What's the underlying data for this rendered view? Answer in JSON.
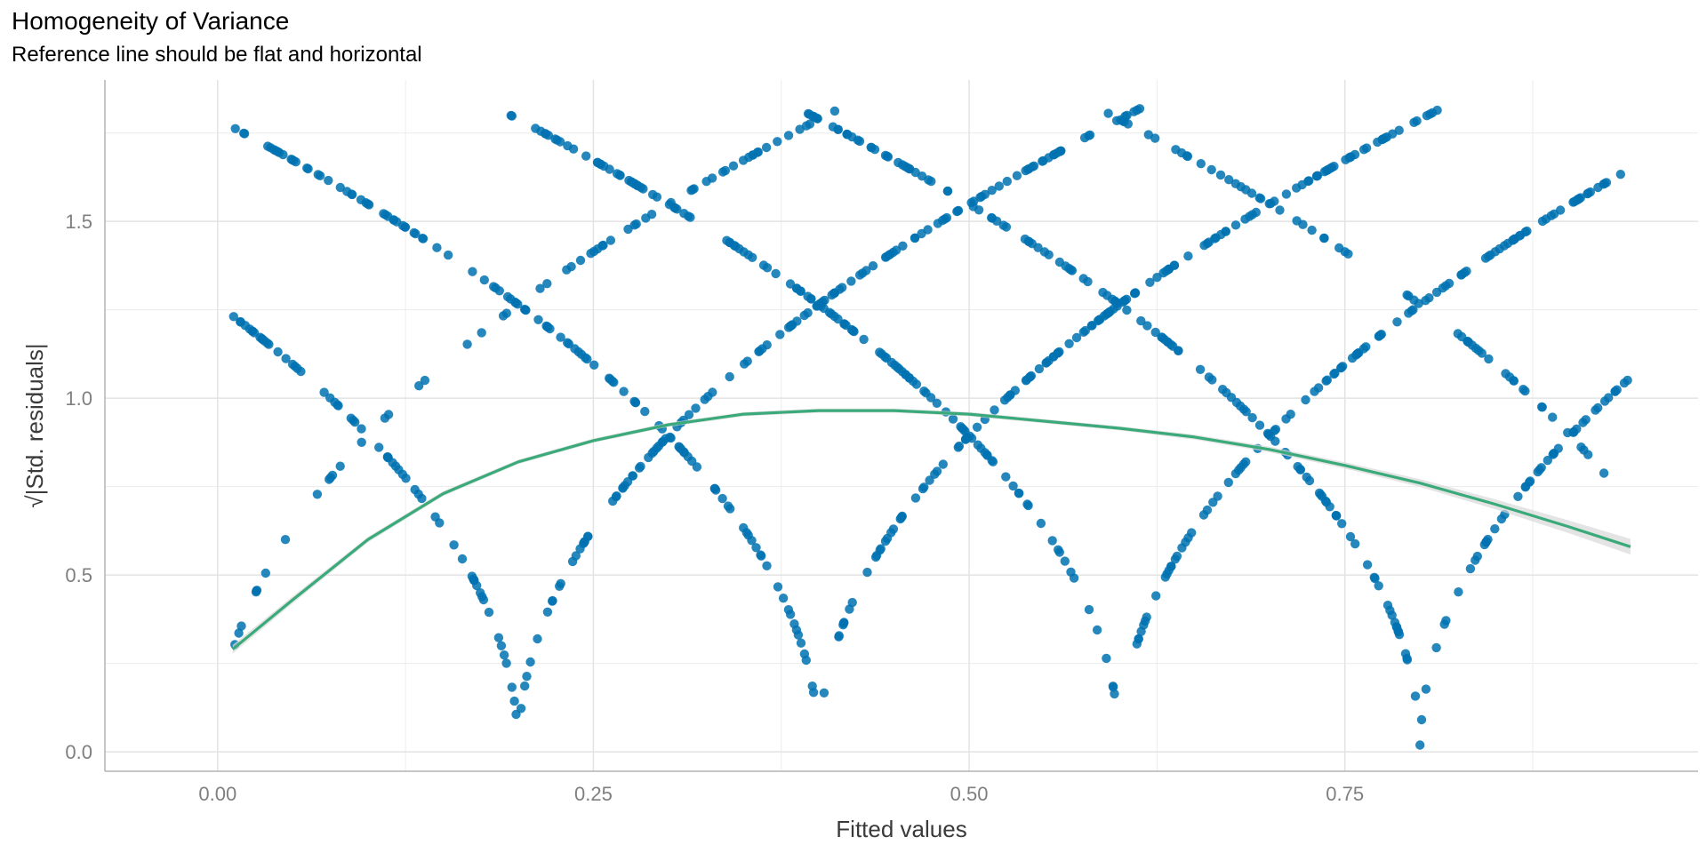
{
  "chart_data": {
    "type": "scatter",
    "title": "Homogeneity of Variance",
    "subtitle": "Reference line should be flat and horizontal",
    "xlabel": "Fitted values",
    "ylabel": "√|Std. residuals|",
    "xlim": [
      -0.075,
      0.985
    ],
    "ylim": [
      -0.055,
      1.9
    ],
    "x_ticks": [
      "0.00",
      "0.25",
      "0.50",
      "0.75"
    ],
    "x_tick_values": [
      0.0,
      0.25,
      0.5,
      0.75
    ],
    "y_ticks": [
      "0.0",
      "0.5",
      "1.0",
      "1.5"
    ],
    "y_tick_values": [
      0.0,
      0.5,
      1.0,
      1.5
    ],
    "grid": true,
    "point_color": "#0072b2",
    "smooth_color": "#3aaa7a",
    "band_color": "#d9d9d9",
    "point_families": [
      {
        "center": 0.2,
        "sign": -1
      },
      {
        "center": 0.4,
        "sign": -1
      },
      {
        "center": 0.6,
        "sign": -1
      },
      {
        "center": 0.8,
        "sign": -1
      },
      {
        "center": 1.0,
        "sign": -1
      },
      {
        "center": 0.2,
        "sign": 1
      },
      {
        "center": 0.4,
        "sign": 1
      },
      {
        "center": 0.6,
        "sign": 1
      },
      {
        "center": 0.8,
        "sign": 1
      },
      {
        "center": 0.0,
        "sign": 1
      }
    ],
    "point_x_range": [
      0.01,
      0.94
    ],
    "residual_scale": 0.125,
    "smooth_line": [
      {
        "x": 0.01,
        "y": 0.29
      },
      {
        "x": 0.05,
        "y": 0.43
      },
      {
        "x": 0.1,
        "y": 0.6
      },
      {
        "x": 0.15,
        "y": 0.73
      },
      {
        "x": 0.2,
        "y": 0.82
      },
      {
        "x": 0.25,
        "y": 0.88
      },
      {
        "x": 0.3,
        "y": 0.925
      },
      {
        "x": 0.35,
        "y": 0.955
      },
      {
        "x": 0.4,
        "y": 0.965
      },
      {
        "x": 0.45,
        "y": 0.965
      },
      {
        "x": 0.5,
        "y": 0.955
      },
      {
        "x": 0.55,
        "y": 0.935
      },
      {
        "x": 0.6,
        "y": 0.915
      },
      {
        "x": 0.65,
        "y": 0.89
      },
      {
        "x": 0.7,
        "y": 0.855
      },
      {
        "x": 0.75,
        "y": 0.81
      },
      {
        "x": 0.8,
        "y": 0.76
      },
      {
        "x": 0.85,
        "y": 0.7
      },
      {
        "x": 0.9,
        "y": 0.635
      },
      {
        "x": 0.94,
        "y": 0.58
      }
    ],
    "smooth_band_halfwidth": [
      0.012,
      0.01,
      0.008,
      0.007,
      0.006,
      0.006,
      0.006,
      0.006,
      0.006,
      0.006,
      0.006,
      0.006,
      0.006,
      0.007,
      0.008,
      0.009,
      0.011,
      0.014,
      0.018,
      0.022
    ]
  }
}
